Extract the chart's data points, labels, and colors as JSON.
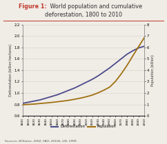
{
  "title_fig": "Figure 1:",
  "title_main1": " World population and cumulative",
  "title_main2": "deforestation, 1800 to 2010",
  "ylabel_left": "Deforestation (billion hectares)",
  "ylabel_right": "Population (billion)",
  "years": [
    1800,
    1810,
    1820,
    1830,
    1840,
    1850,
    1860,
    1870,
    1880,
    1890,
    1900,
    1910,
    1920,
    1930,
    1940,
    1950,
    1960,
    1970,
    1980,
    1990,
    2000,
    2010
  ],
  "deforestation": [
    0.82,
    0.84,
    0.86,
    0.88,
    0.91,
    0.94,
    0.97,
    1.01,
    1.05,
    1.09,
    1.14,
    1.19,
    1.24,
    1.3,
    1.37,
    1.44,
    1.52,
    1.6,
    1.68,
    1.74,
    1.79,
    1.82
  ],
  "population_billions": [
    0.98,
    1.01,
    1.04,
    1.09,
    1.13,
    1.18,
    1.24,
    1.3,
    1.37,
    1.46,
    1.56,
    1.68,
    1.82,
    2.02,
    2.25,
    2.52,
    3.02,
    3.68,
    4.42,
    5.26,
    6.07,
    6.87
  ],
  "defor_color": "#4a4a8a",
  "pop_color": "#a07010",
  "ylim_left": [
    0.6,
    2.2
  ],
  "ylim_right": [
    0,
    8
  ],
  "yticks_left": [
    0.6,
    0.8,
    1.0,
    1.2,
    1.4,
    1.6,
    1.8,
    2.0,
    2.2
  ],
  "yticks_right": [
    0,
    1,
    2,
    3,
    4,
    5,
    6,
    7,
    8
  ],
  "bg_color": "#f0ece6",
  "title_color": "#c0392b",
  "text_color": "#333333",
  "grid_color": "#d8d0c8",
  "sources": "Sources: Williams, 2002; FAO, 2010b; UN, 1999.",
  "legend_defor": "Deforestation",
  "legend_pop": "Population"
}
